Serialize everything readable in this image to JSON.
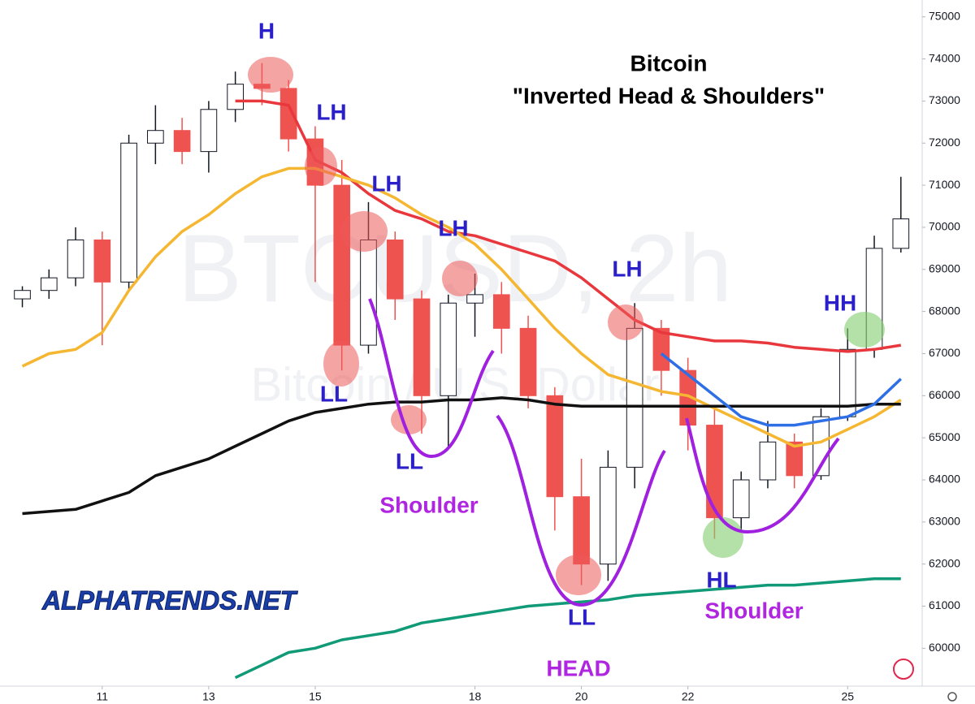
{
  "chart_data": {
    "type": "candlestick",
    "title": "Bitcoin",
    "subtitle": "\"Inverted Head & Shoulders\"",
    "watermark": "BTCUSD, 2h",
    "watermark_subtitle": "Bitcoin / U.S. Dollar",
    "logo": "ALPHATRENDS.NET",
    "x": [
      9.5,
      10,
      10.5,
      11,
      11.5,
      12,
      12.5,
      13,
      13.5,
      14,
      14.5,
      15,
      15.5,
      16,
      16.5,
      17,
      17.5,
      18,
      18.5,
      19,
      19.5,
      20,
      20.5,
      21,
      21.5,
      22,
      22.5,
      23,
      23.5,
      24,
      24.5,
      25,
      25.5,
      26
    ],
    "open": [
      68300,
      68500,
      68800,
      69700,
      68700,
      72000,
      72300,
      71800,
      72800,
      73400,
      73300,
      72100,
      71000,
      67200,
      69700,
      68300,
      66000,
      68200,
      68400,
      67600,
      66000,
      63600,
      62000,
      64300,
      67600,
      66600,
      65300,
      63100,
      64000,
      64900,
      64100,
      65500,
      67100,
      69500
    ],
    "high": [
      68600,
      69000,
      70000,
      69900,
      72200,
      72900,
      72600,
      73000,
      73700,
      73900,
      73500,
      72400,
      71600,
      70600,
      69900,
      68500,
      68400,
      68900,
      68700,
      67900,
      66200,
      64500,
      64700,
      68200,
      67800,
      66900,
      65700,
      64200,
      65400,
      65100,
      65700,
      67600,
      69800,
      71200
    ],
    "low": [
      68100,
      68300,
      68600,
      67200,
      68500,
      71500,
      71500,
      71300,
      72500,
      72900,
      71800,
      68700,
      66600,
      67000,
      67800,
      65100,
      64800,
      67400,
      67000,
      65700,
      62800,
      61500,
      61600,
      63800,
      66000,
      64700,
      62600,
      62800,
      63800,
      63800,
      64000,
      65400,
      66900,
      69400
    ],
    "close": [
      68500,
      68800,
      69700,
      68700,
      72000,
      72300,
      71800,
      72800,
      73400,
      73300,
      72100,
      71000,
      67200,
      69700,
      68300,
      66000,
      68200,
      68400,
      67600,
      66000,
      63600,
      62000,
      64300,
      67600,
      66600,
      65300,
      63100,
      64000,
      64900,
      64100,
      65500,
      67100,
      69500,
      70200
    ],
    "up_color": "#ffffff",
    "down_color": "#ef5350",
    "series": [
      {
        "color": "#e8383d",
        "values": [
          null,
          null,
          null,
          null,
          null,
          null,
          null,
          null,
          73000,
          73000,
          72900,
          71600,
          71300,
          70800,
          70400,
          70200,
          69900,
          69800,
          69600,
          69400,
          69200,
          68800,
          68300,
          67800,
          67500,
          67400,
          67300,
          67300,
          67250,
          67150,
          67100,
          67050,
          67100,
          67200
        ]
      },
      {
        "color": "#f5b731",
        "values": [
          66700,
          67000,
          67100,
          67500,
          68500,
          69300,
          69900,
          70300,
          70800,
          71200,
          71400,
          71400,
          71200,
          71000,
          70700,
          70300,
          70000,
          69600,
          69000,
          68300,
          67600,
          67000,
          66500,
          66300,
          66100,
          66000,
          65700,
          65400,
          65100,
          64800,
          64900,
          65200,
          65500,
          65900
        ]
      },
      {
        "color": "#111111",
        "values": [
          63200,
          63250,
          63300,
          63500,
          63700,
          64100,
          64300,
          64500,
          64800,
          65100,
          65400,
          65600,
          65700,
          65800,
          65850,
          65850,
          65900,
          65900,
          65950,
          65900,
          65800,
          65750,
          65750,
          65750,
          65750,
          65750,
          65750,
          65750,
          65750,
          65750,
          65750,
          65750,
          65800,
          65800
        ]
      },
      {
        "color": "#109a78",
        "values": [
          null,
          null,
          null,
          null,
          null,
          null,
          null,
          null,
          59300,
          59600,
          59900,
          60000,
          60200,
          60300,
          60400,
          60600,
          60700,
          60800,
          60900,
          61000,
          61050,
          61100,
          61150,
          61250,
          61300,
          61350,
          61400,
          61450,
          61500,
          61500,
          61550,
          61600,
          61650,
          61650
        ]
      },
      {
        "color": "#2f6fe6",
        "values": [
          null,
          null,
          null,
          null,
          null,
          null,
          null,
          null,
          null,
          null,
          null,
          null,
          null,
          null,
          null,
          null,
          null,
          null,
          null,
          null,
          null,
          null,
          null,
          null,
          67000,
          66500,
          66000,
          65500,
          65300,
          65300,
          65400,
          65500,
          65800,
          66400
        ]
      }
    ],
    "annotations": [
      "H",
      "LH",
      "LH",
      "LH",
      "LL",
      "LL",
      "LH",
      "Shoulder",
      "HEAD",
      "LL",
      "HL",
      "Shoulder",
      "HH"
    ],
    "xlim": [
      9.08,
      26.4
    ],
    "xticks": [
      11,
      13,
      15,
      18,
      20,
      22,
      25
    ],
    "ylim": [
      59100,
      75400
    ],
    "yticks": [
      60000,
      61000,
      62000,
      63000,
      64000,
      65000,
      66000,
      67000,
      68000,
      69000,
      70000,
      71000,
      72000,
      73000,
      74000,
      75000
    ]
  }
}
